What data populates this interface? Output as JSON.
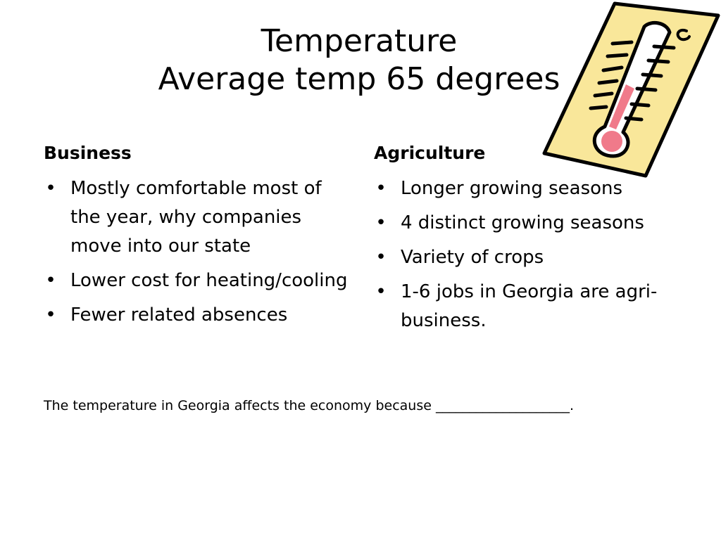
{
  "title": {
    "line1": "Temperature",
    "line2": "Average temp 65 degrees"
  },
  "business": {
    "heading": "Business",
    "items": [
      "Mostly comfortable most of the year, why companies move into our state",
      "Lower cost for heating/cooling",
      "Fewer related absences"
    ]
  },
  "agriculture": {
    "heading": "Agriculture",
    "items": [
      "Longer growing seasons",
      "4 distinct growing seasons",
      "Variety of crops",
      "1-6 jobs in Georgia are agri-business."
    ]
  },
  "footer": {
    "text": "The temperature in Georgia affects the economy because ____________________."
  },
  "thermometer_icon": "thermometer-icon",
  "colors": {
    "card_fill": "#f9e79a",
    "mercury": "#f07a8a",
    "outline": "#000000"
  }
}
